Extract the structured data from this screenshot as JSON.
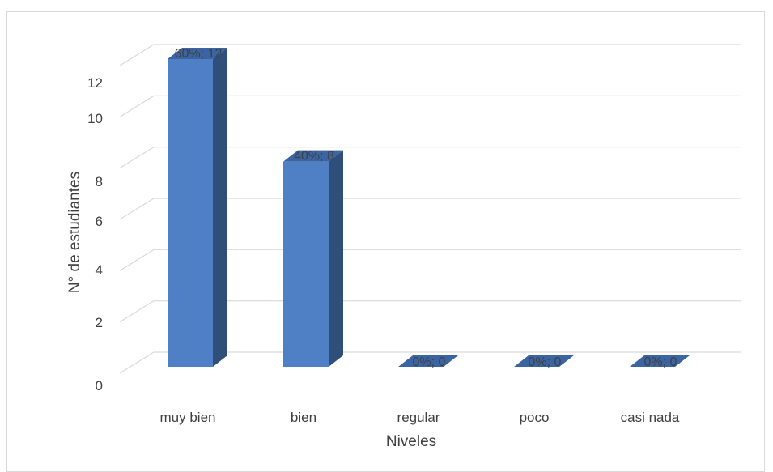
{
  "chart_data": {
    "type": "bar",
    "style": "3d-column",
    "title": "",
    "xlabel": "Niveles",
    "ylabel": "N° de estudiantes",
    "categories": [
      "muy bien",
      "bien",
      "regular",
      "poco",
      "casi nada"
    ],
    "series": [
      {
        "values": [
          12,
          8,
          0,
          0,
          0
        ],
        "data_labels": [
          "60%; 12",
          "40%; 8",
          "0%; 0",
          "0%; 0",
          "0%; 0"
        ]
      }
    ],
    "yticks": [
      "0",
      "2",
      "4",
      "6",
      "8",
      "10",
      "12"
    ],
    "ylim": [
      0,
      12
    ],
    "grid": true,
    "legend": "none",
    "colors": {
      "bar_front": "#4f7fc4",
      "bar_side": "#2f4f7a",
      "bar_top": "#3b64a2",
      "gridline": "#d9d9d9",
      "text": "#404040"
    }
  }
}
